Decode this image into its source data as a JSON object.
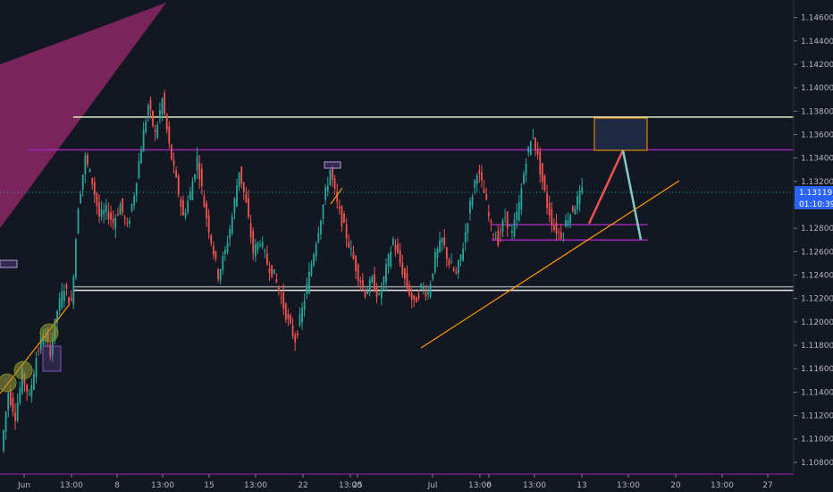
{
  "chart_data": {
    "type": "candlestick",
    "title": "",
    "xlabel": "",
    "ylabel": "",
    "ylim": [
      1.107,
      1.1475
    ],
    "y_ticks": [
      "1.10800",
      "1.11000",
      "1.11200",
      "1.11400",
      "1.11600",
      "1.11800",
      "1.12000",
      "1.12200",
      "1.12400",
      "1.12600",
      "1.12800",
      "1.13000",
      "1.13200",
      "1.13400",
      "1.13600",
      "1.13800",
      "1.14000",
      "1.14200",
      "1.14400",
      "1.14600"
    ],
    "x_ticks": [
      "Jun",
      "13:00",
      "8",
      "13:00",
      "15",
      "13:00",
      "22",
      "13:00",
      "25",
      "Jul",
      "13:00",
      "6",
      "13:00",
      "13",
      "13:00",
      "20",
      "13:00",
      "27"
    ],
    "current_price": "1.13119",
    "countdown": "01:10:39",
    "colors": {
      "up": "#26a69a",
      "down": "#ef5350",
      "background": "#131722",
      "accent": "#2962ff"
    },
    "horizontal_levels": [
      {
        "price": 1.1375,
        "color": "#dcedc8"
      },
      {
        "price": 1.1347,
        "color": "#9c27b0"
      },
      {
        "price": 1.1283,
        "color": "#9c27b0"
      },
      {
        "price": 1.127,
        "color": "#9c27b0"
      },
      {
        "price": 1.1227,
        "color": "#e0e0e0"
      },
      {
        "price": 1.123,
        "color": "#9e9e9e"
      }
    ],
    "candle_trend": [
      [
        1.109,
        1.114
      ],
      [
        1.114,
        1.112
      ],
      [
        1.112,
        1.1155
      ],
      [
        1.1155,
        1.1135
      ],
      [
        1.1135,
        1.117
      ],
      [
        1.117,
        1.119
      ],
      [
        1.119,
        1.1175
      ],
      [
        1.1175,
        1.121
      ],
      [
        1.121,
        1.123
      ],
      [
        1.123,
        1.1215
      ],
      [
        1.1215,
        1.13
      ],
      [
        1.13,
        1.134
      ],
      [
        1.134,
        1.132
      ],
      [
        1.132,
        1.129
      ],
      [
        1.129,
        1.1295
      ],
      [
        1.1295,
        1.1285
      ],
      [
        1.1285,
        1.13
      ],
      [
        1.13,
        1.128
      ],
      [
        1.128,
        1.131
      ],
      [
        1.131,
        1.135
      ],
      [
        1.135,
        1.1385
      ],
      [
        1.1385,
        1.136
      ],
      [
        1.136,
        1.139
      ],
      [
        1.139,
        1.135
      ],
      [
        1.135,
        1.132
      ],
      [
        1.132,
        1.129
      ],
      [
        1.129,
        1.131
      ],
      [
        1.131,
        1.134
      ],
      [
        1.134,
        1.13
      ],
      [
        1.13,
        1.127
      ],
      [
        1.127,
        1.124
      ],
      [
        1.124,
        1.126
      ],
      [
        1.126,
        1.129
      ],
      [
        1.129,
        1.133
      ],
      [
        1.133,
        1.13
      ],
      [
        1.13,
        1.126
      ],
      [
        1.126,
        1.127
      ],
      [
        1.127,
        1.125
      ],
      [
        1.125,
        1.124
      ],
      [
        1.124,
        1.122
      ],
      [
        1.122,
        1.12
      ],
      [
        1.12,
        1.1185
      ],
      [
        1.1185,
        1.121
      ],
      [
        1.121,
        1.124
      ],
      [
        1.124,
        1.127
      ],
      [
        1.127,
        1.13
      ],
      [
        1.13,
        1.133
      ],
      [
        1.133,
        1.13
      ],
      [
        1.13,
        1.128
      ],
      [
        1.128,
        1.126
      ],
      [
        1.126,
        1.124
      ],
      [
        1.124,
        1.1225
      ],
      [
        1.1225,
        1.1235
      ],
      [
        1.1235,
        1.122
      ],
      [
        1.122,
        1.1245
      ],
      [
        1.1245,
        1.127
      ],
      [
        1.127,
        1.125
      ],
      [
        1.125,
        1.123
      ],
      [
        1.123,
        1.1215
      ],
      [
        1.1215,
        1.123
      ],
      [
        1.123,
        1.1225
      ],
      [
        1.1225,
        1.1255
      ],
      [
        1.1255,
        1.127
      ],
      [
        1.127,
        1.125
      ],
      [
        1.125,
        1.124
      ],
      [
        1.124,
        1.1265
      ],
      [
        1.1265,
        1.13
      ],
      [
        1.13,
        1.133
      ],
      [
        1.133,
        1.131
      ],
      [
        1.131,
        1.128
      ],
      [
        1.128,
        1.127
      ],
      [
        1.127,
        1.129
      ],
      [
        1.129,
        1.1275
      ],
      [
        1.1275,
        1.13
      ],
      [
        1.13,
        1.134
      ],
      [
        1.134,
        1.136
      ],
      [
        1.136,
        1.133
      ],
      [
        1.133,
        1.13
      ],
      [
        1.13,
        1.128
      ],
      [
        1.128,
        1.1275
      ],
      [
        1.1275,
        1.129
      ],
      [
        1.129,
        1.13
      ],
      [
        1.13,
        1.1312
      ]
    ]
  }
}
